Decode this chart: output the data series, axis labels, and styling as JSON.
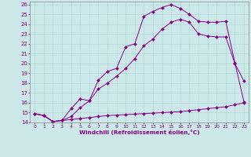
{
  "xlabel": "Windchill (Refroidissement éolien,°C)",
  "background_color": "#cce8e8",
  "line_color": "#880088",
  "xlim": [
    -0.5,
    23.5
  ],
  "ylim": [
    14,
    26.3
  ],
  "yticks": [
    14,
    15,
    16,
    17,
    18,
    19,
    20,
    21,
    22,
    23,
    24,
    25,
    26
  ],
  "xticks": [
    0,
    1,
    2,
    3,
    4,
    5,
    6,
    7,
    8,
    9,
    10,
    11,
    12,
    13,
    14,
    15,
    16,
    17,
    18,
    19,
    20,
    21,
    22,
    23
  ],
  "line1_x": [
    0,
    1,
    2,
    3,
    4,
    5,
    6,
    7,
    8,
    9,
    10,
    11,
    12,
    13,
    14,
    15,
    16,
    17,
    18,
    19,
    20,
    21,
    22,
    23
  ],
  "line1_y": [
    14.9,
    14.7,
    14.1,
    14.2,
    14.3,
    14.4,
    14.5,
    14.6,
    14.7,
    14.75,
    14.8,
    14.85,
    14.9,
    14.95,
    15.0,
    15.05,
    15.1,
    15.2,
    15.3,
    15.4,
    15.5,
    15.6,
    15.8,
    16.0
  ],
  "line2_x": [
    0,
    1,
    2,
    3,
    4,
    5,
    6,
    7,
    8,
    9,
    10,
    11,
    12,
    13,
    14,
    15,
    16,
    17,
    18,
    19,
    20,
    21,
    22,
    23
  ],
  "line2_y": [
    14.9,
    14.7,
    14.1,
    14.2,
    14.6,
    15.5,
    16.2,
    17.4,
    18.0,
    18.7,
    19.5,
    20.5,
    21.8,
    22.5,
    23.5,
    24.2,
    24.5,
    24.2,
    23.0,
    22.8,
    22.7,
    22.7,
    20.0,
    18.2
  ],
  "line3_x": [
    0,
    1,
    2,
    3,
    4,
    5,
    6,
    7,
    8,
    9,
    10,
    11,
    12,
    13,
    14,
    15,
    16,
    17,
    18,
    19,
    20,
    21,
    22,
    23
  ],
  "line3_y": [
    14.9,
    14.7,
    14.1,
    14.2,
    15.4,
    16.4,
    16.2,
    18.3,
    19.2,
    19.5,
    21.7,
    22.0,
    24.8,
    25.3,
    25.7,
    26.0,
    25.6,
    25.0,
    24.3,
    24.2,
    24.2,
    24.3,
    20.1,
    16.1
  ]
}
